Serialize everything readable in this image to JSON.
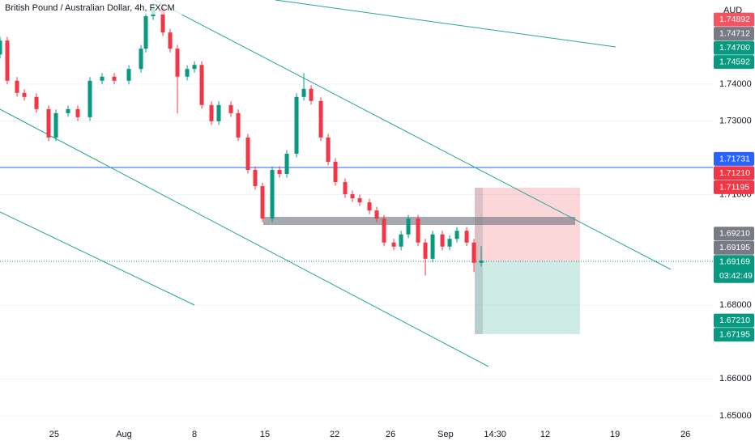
{
  "chart_data": {
    "type": "candlestick",
    "title": "British Pound / Australian Dollar, 4h, FXCM",
    "y_unit": "AUD",
    "x": [
      0,
      3,
      7,
      10,
      15,
      20,
      23,
      28,
      32,
      37,
      42,
      47,
      53,
      58,
      60,
      63,
      67,
      70,
      73,
      77,
      80,
      83,
      87,
      90,
      95,
      98,
      102,
      105,
      108,
      112,
      115,
      118,
      122,
      125,
      128,
      132,
      135,
      138,
      142,
      145,
      148,
      152,
      155,
      158,
      162,
      165,
      168,
      172,
      175,
      178,
      182,
      185,
      188,
      192,
      195,
      198
    ],
    "open": [
      1.748,
      1.7518,
      1.7409,
      1.7376,
      1.7365,
      1.7332,
      1.7255,
      1.7321,
      1.7332,
      1.731,
      1.7409,
      1.742,
      1.7409,
      1.7441,
      1.7496,
      1.7584,
      1.7606,
      1.754,
      1.7496,
      1.742,
      1.7441,
      1.7452,
      1.7343,
      1.7299,
      1.7343,
      1.7321,
      1.7255,
      1.7167,
      1.7123,
      1.7035,
      1.7167,
      1.7156,
      1.7211,
      1.7365,
      1.7387,
      1.7354,
      1.7255,
      1.7189,
      1.7134,
      1.7101,
      1.709,
      1.7079,
      1.7057,
      1.7035,
      1.697,
      1.6959,
      1.6992,
      1.7035,
      1.697,
      1.6926,
      1.6992,
      1.6959,
      1.698,
      1.7002,
      1.697,
      1.6915
    ],
    "high": [
      1.7528,
      1.7528,
      1.7419,
      1.7386,
      1.7375,
      1.7342,
      1.7331,
      1.7342,
      1.7342,
      1.7419,
      1.743,
      1.743,
      1.7451,
      1.7506,
      1.7594,
      1.7625,
      1.7616,
      1.755,
      1.7506,
      1.7451,
      1.7462,
      1.7462,
      1.7353,
      1.7353,
      1.7353,
      1.7331,
      1.7265,
      1.7177,
      1.7133,
      1.7177,
      1.7177,
      1.7221,
      1.7375,
      1.743,
      1.7397,
      1.7364,
      1.7265,
      1.7199,
      1.7144,
      1.7111,
      1.71,
      1.7089,
      1.7067,
      1.7045,
      1.698,
      1.7002,
      1.7045,
      1.7045,
      1.698,
      1.7002,
      1.7002,
      1.699,
      1.7012,
      1.7012,
      1.698,
      1.696
    ],
    "low": [
      1.747,
      1.7399,
      1.7366,
      1.7355,
      1.7322,
      1.7245,
      1.7245,
      1.7311,
      1.73,
      1.73,
      1.7399,
      1.7399,
      1.7399,
      1.7431,
      1.7486,
      1.7574,
      1.753,
      1.7486,
      1.732,
      1.741,
      1.7431,
      1.7333,
      1.7289,
      1.7289,
      1.7311,
      1.7245,
      1.7157,
      1.7113,
      1.7025,
      1.7025,
      1.7146,
      1.7146,
      1.7201,
      1.7355,
      1.7344,
      1.7245,
      1.7179,
      1.7124,
      1.7091,
      1.708,
      1.7069,
      1.7047,
      1.7025,
      1.696,
      1.6949,
      1.6949,
      1.6982,
      1.696,
      1.688,
      1.6916,
      1.6949,
      1.6949,
      1.697,
      1.696,
      1.689,
      1.6905
    ],
    "close": [
      1.7518,
      1.7409,
      1.7376,
      1.7365,
      1.7332,
      1.7255,
      1.7321,
      1.7332,
      1.731,
      1.7409,
      1.742,
      1.7409,
      1.7441,
      1.7496,
      1.7584,
      1.7606,
      1.754,
      1.7496,
      1.742,
      1.7441,
      1.7452,
      1.7343,
      1.7299,
      1.7343,
      1.7321,
      1.7255,
      1.7167,
      1.7123,
      1.7035,
      1.7167,
      1.7156,
      1.7211,
      1.7365,
      1.7387,
      1.7354,
      1.7255,
      1.7189,
      1.7134,
      1.7101,
      1.709,
      1.7079,
      1.7057,
      1.7035,
      1.697,
      1.6959,
      1.6992,
      1.7035,
      1.697,
      1.6926,
      1.6992,
      1.6959,
      1.698,
      1.7002,
      1.697,
      1.6915,
      1.6921
    ],
    "up_color": "#089981",
    "down_color": "#f23645",
    "xlim": [
      0,
      293.3
    ],
    "xticks": [
      {
        "value": 22.3,
        "label": "25"
      },
      {
        "value": 51,
        "label": "Aug"
      },
      {
        "value": 80,
        "label": "8"
      },
      {
        "value": 109,
        "label": "15"
      },
      {
        "value": 137.7,
        "label": "22"
      },
      {
        "value": 160.7,
        "label": "26"
      },
      {
        "value": 183.3,
        "label": "Sep"
      },
      {
        "value": 203.7,
        "label": "14:30"
      },
      {
        "value": 224.3,
        "label": "12"
      },
      {
        "value": 253,
        "label": "19"
      },
      {
        "value": 282,
        "label": "26"
      }
    ],
    "ylim": [
      1.6469,
      1.7628
    ],
    "yticks": [
      {
        "value": 1.74,
        "label": "1.74000"
      },
      {
        "value": 1.73,
        "label": "1.73000"
      },
      {
        "value": 1.71,
        "label": "1.71000"
      },
      {
        "value": 1.68,
        "label": "1.68000"
      },
      {
        "value": 1.66,
        "label": "1.66000"
      },
      {
        "value": 1.65,
        "label": "1.65000"
      }
    ],
    "price_labels": [
      {
        "value": 1.74892,
        "label": "1.74892",
        "color": "#f7525f"
      },
      {
        "value": 1.74712,
        "label": "1.74712",
        "color": "#787b86"
      },
      {
        "value": 1.747,
        "label": "1.74700",
        "color": "#089981"
      },
      {
        "value": 1.74592,
        "label": "1.74592",
        "color": "#089981"
      },
      {
        "value": 1.71731,
        "label": "1.71731",
        "color": "#2962ff"
      },
      {
        "value": 1.7121,
        "label": "1.71210",
        "color": "#f23645"
      },
      {
        "value": 1.71195,
        "label": "1.71195",
        "color": "#f23645"
      },
      {
        "value": 1.6921,
        "label": "1.69210",
        "color": "#787b86"
      },
      {
        "value": 1.69195,
        "label": "1.69195",
        "color": "#787b86"
      },
      {
        "value": 1.69169,
        "label": "1.69169",
        "color": "#089981",
        "countdown": "03:42:49"
      },
      {
        "value": 1.6721,
        "label": "1.67210",
        "color": "#089981"
      },
      {
        "value": 1.67195,
        "label": "1.67195",
        "color": "#089981"
      }
    ]
  }
}
